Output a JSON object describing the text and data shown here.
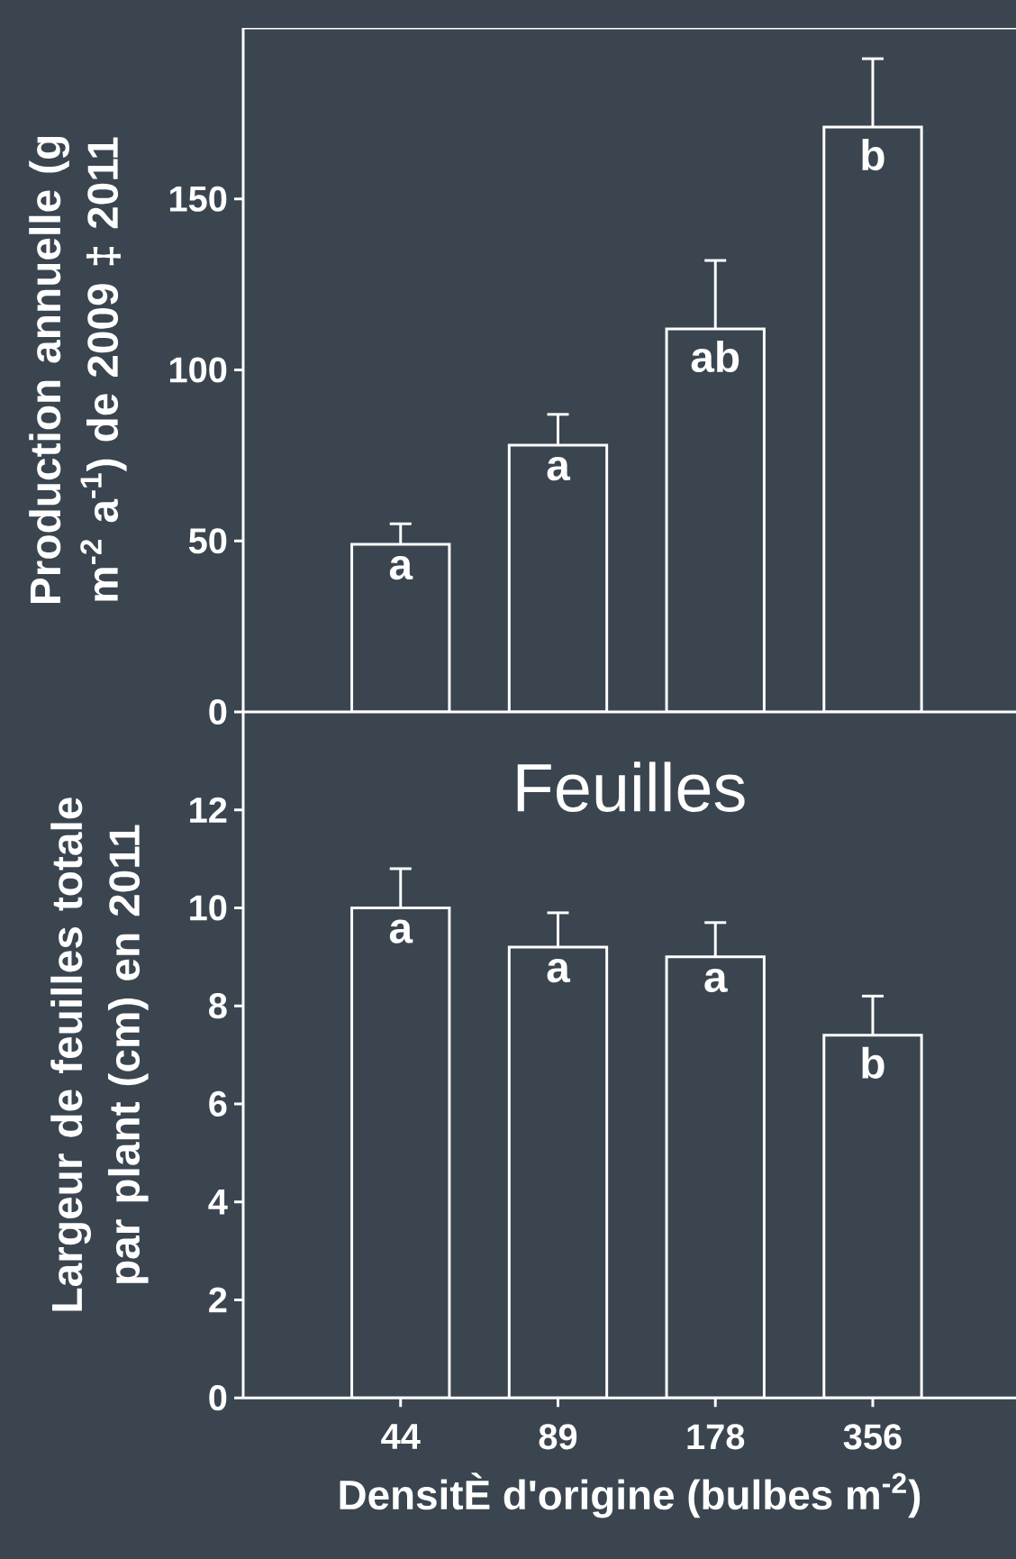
{
  "chart_data": [
    {
      "type": "bar",
      "categories": [
        "44",
        "89",
        "178",
        "356"
      ],
      "values": [
        49,
        78,
        112,
        171
      ],
      "errors": [
        [
          49,
          55
        ],
        [
          78,
          87
        ],
        [
          112,
          132
        ],
        [
          171,
          191
        ]
      ],
      "color": "#ffffff",
      "ylabel": "Production annuelle (g m$^{-2}$ a$^{-1}$) de 2009 ‡ 2011",
      "ylim": [
        0,
        200
      ],
      "yticks": [
        0,
        50,
        100,
        150
      ],
      "tick_labels": "y",
      "annotations": [
        {
          "text": "a",
          "x": "44",
          "y": 49
        },
        {
          "text": "a",
          "x": "89",
          "y": 78
        },
        {
          "text": "ab",
          "x": "178",
          "y": 112
        },
        {
          "text": "b",
          "x": "356",
          "y": 171
        }
      ]
    },
    {
      "type": "bar",
      "title": "Feuilles",
      "categories": [
        "44",
        "89",
        "178",
        "356"
      ],
      "values": [
        10.0,
        9.2,
        9.0,
        7.4
      ],
      "errors": [
        [
          10.0,
          10.8
        ],
        [
          9.2,
          9.9
        ],
        [
          9.0,
          9.7
        ],
        [
          7.4,
          8.2
        ]
      ],
      "color": "#ffffff",
      "xlabel": "DensitÈ d'origine (bulbes m$^{-2}$)",
      "ylabel": "Largeur de feuilles totale par plant (cm) en 2011",
      "ylim": [
        0,
        14
      ],
      "yticks": [
        0,
        2,
        4,
        6,
        8,
        10,
        12
      ],
      "annotations": [
        {
          "text": "a",
          "x": "44",
          "y": 10.0
        },
        {
          "text": "a",
          "x": "89",
          "y": 9.2
        },
        {
          "text": "a",
          "x": "178",
          "y": 9.0
        },
        {
          "text": "b",
          "x": "356",
          "y": 7.4
        }
      ]
    }
  ]
}
